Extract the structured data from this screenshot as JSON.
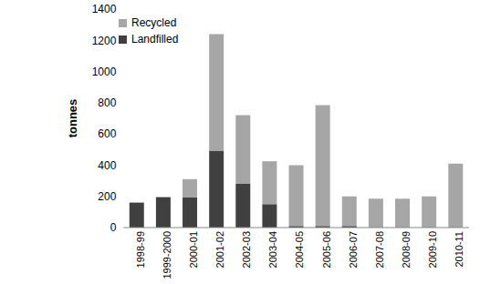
{
  "chart_data": {
    "type": "bar",
    "stacked": true,
    "grid": false,
    "legend": "top-left",
    "y_label": "tonnes",
    "categories": [
      "1998-99",
      "1999-2000",
      "2000-01",
      "2001-02",
      "2002-03",
      "2003-04",
      "2004-05",
      "2005-06",
      "2006-07",
      "2007-08",
      "2008-09",
      "2009-10",
      "2010-11"
    ],
    "series": [
      {
        "name": "Landfilled",
        "color": "#404040",
        "values": [
          160,
          195,
          195,
          490,
          280,
          150,
          10,
          10,
          10,
          0,
          0,
          0,
          0
        ]
      },
      {
        "name": "Recycled",
        "color": "#a6a6a6",
        "values": [
          0,
          0,
          115,
          750,
          440,
          275,
          390,
          775,
          190,
          185,
          185,
          200,
          410
        ]
      }
    ],
    "ylim": [
      0,
      1400
    ],
    "yticks": [
      0,
      200,
      400,
      600,
      800,
      1000,
      1200,
      1400
    ]
  }
}
